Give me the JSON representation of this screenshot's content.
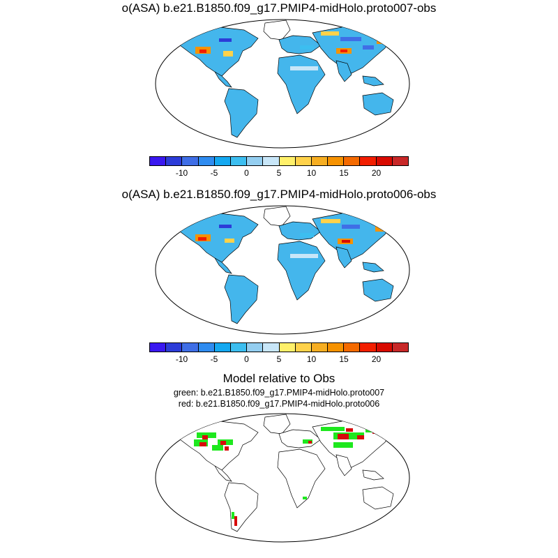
{
  "panels": [
    {
      "title": "o(ASA) b.e21.B1850.f09_g17.PMIP4-midHolo.proto007-obs"
    },
    {
      "title": "o(ASA) b.e21.B1850.f09_g17.PMIP4-midHolo.proto006-obs"
    }
  ],
  "comparison": {
    "title": "Model relative to Obs",
    "line1": "green: b.e21.B1850.f09_g17.PMIP4-midHolo.proto007",
    "line2": "red: b.e21.B1850.f09_g17.PMIP4-midHolo.proto006"
  },
  "colorbar": {
    "colors": [
      "#3a18f0",
      "#2c3cd8",
      "#3f6ee6",
      "#2f8cf0",
      "#14a8f0",
      "#3cbef0",
      "#94cef0",
      "#c8e6f8",
      "#fff06a",
      "#ffd24a",
      "#f6ae22",
      "#f69200",
      "#f46a00",
      "#f21e00",
      "#d80a00",
      "#c82828"
    ],
    "tick_labels": [
      "-10",
      "-5",
      "0",
      "5",
      "10",
      "15",
      "20"
    ]
  },
  "colors": {
    "land_base": "#44b6ec",
    "green": "#1ee81e",
    "red": "#d80a0a",
    "coast": "#000000"
  }
}
